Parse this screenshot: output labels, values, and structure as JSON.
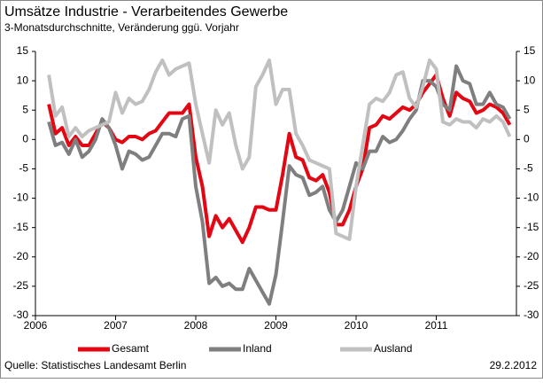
{
  "chart_data": {
    "type": "line",
    "title": "Umsätze Industrie - Verarbeitendes Gewerbe",
    "subtitle": "3-Monatsdurchschnitte, Veränderung ggü. Vorjahr",
    "source": "Quelle: Statistisches Landesamt Berlin",
    "date": "29.2.2012",
    "x": [
      2006.167,
      2006.25,
      2006.333,
      2006.417,
      2006.5,
      2006.583,
      2006.667,
      2006.75,
      2006.833,
      2006.917,
      2007.0,
      2007.083,
      2007.167,
      2007.25,
      2007.333,
      2007.417,
      2007.5,
      2007.583,
      2007.667,
      2007.75,
      2007.833,
      2007.917,
      2008.0,
      2008.083,
      2008.167,
      2008.25,
      2008.333,
      2008.417,
      2008.5,
      2008.583,
      2008.667,
      2008.75,
      2008.833,
      2008.917,
      2009.0,
      2009.083,
      2009.167,
      2009.25,
      2009.333,
      2009.417,
      2009.5,
      2009.583,
      2009.667,
      2009.75,
      2009.833,
      2009.917,
      2010.0,
      2010.083,
      2010.167,
      2010.25,
      2010.333,
      2010.417,
      2010.5,
      2010.583,
      2010.667,
      2010.75,
      2010.833,
      2010.917,
      2011.0,
      2011.083,
      2011.167,
      2011.25,
      2011.333,
      2011.417,
      2011.5,
      2011.583,
      2011.667,
      2011.75,
      2011.833,
      2011.917
    ],
    "series": [
      {
        "name": "Gesamt",
        "color": "#e30613",
        "width": 4,
        "values": [
          6,
          1,
          2,
          -1,
          0.5,
          -1,
          -1,
          1,
          3,
          2,
          0,
          -0.5,
          0.5,
          0.5,
          0,
          1,
          1.5,
          3,
          4.5,
          4.5,
          4.5,
          6,
          -3,
          -8,
          -16.5,
          -13,
          -15,
          -13.5,
          -15.5,
          -17.5,
          -15,
          -11.5,
          -11.5,
          -12,
          -12,
          -6,
          1,
          -3,
          -3.5,
          -6.5,
          -7,
          -6,
          -9,
          -14.5,
          -14.5,
          -12,
          -8,
          -5,
          2,
          2.5,
          4,
          3.5,
          4.5,
          5.5,
          5,
          6,
          8,
          9.5,
          11,
          7,
          4,
          8,
          7,
          6.5,
          4.5,
          5,
          6,
          5.5,
          4.5,
          2.5
        ]
      },
      {
        "name": "Inland",
        "color": "#7f7f7f",
        "width": 4,
        "values": [
          3,
          -1,
          -0.5,
          -2.5,
          0,
          -3,
          -2,
          0,
          3.5,
          2,
          -1,
          -5,
          -2,
          -2.5,
          -3.5,
          -3,
          -1,
          1,
          1,
          0.5,
          3.5,
          4,
          -8,
          -14,
          -24.5,
          -23.5,
          -25,
          -24.5,
          -25.5,
          -25.5,
          -22,
          -24,
          -26,
          -28,
          -23,
          -14,
          -4.5,
          -6,
          -6.5,
          -9.5,
          -9,
          -8,
          -12,
          -14,
          -12,
          -8,
          -4,
          -5,
          -2,
          -2,
          0.5,
          -0.5,
          0,
          1.5,
          3.5,
          5,
          10,
          10,
          9,
          6,
          5,
          12.5,
          10,
          9.5,
          6,
          6,
          8,
          6,
          5.5,
          3.5
        ]
      },
      {
        "name": "Ausland",
        "color": "#c0c0c0",
        "width": 4,
        "values": [
          11,
          4,
          5.5,
          0.5,
          2,
          0.5,
          1.5,
          2,
          2.5,
          3,
          8,
          4.5,
          7,
          6,
          6.5,
          8.5,
          11.5,
          13.5,
          11,
          12,
          12.5,
          13,
          6,
          1,
          -4,
          5,
          2.5,
          4.5,
          -1,
          -5,
          -3,
          9,
          11,
          13.5,
          6,
          8.5,
          8.5,
          1,
          -1,
          -3.5,
          -4,
          -4.5,
          -5,
          -16,
          -16.5,
          -17,
          -8,
          -1,
          6,
          7,
          6.5,
          8,
          11,
          11.5,
          7,
          5.5,
          9,
          13.5,
          12,
          3,
          2.5,
          3.5,
          3,
          3,
          2,
          3.5,
          3,
          4,
          3,
          0.5
        ]
      }
    ],
    "xlim": [
      2006,
      2012
    ],
    "xticks": [
      2006,
      2007,
      2008,
      2009,
      2010,
      2011
    ],
    "ylim": [
      -30,
      15
    ],
    "yticks": [
      -30,
      -25,
      -20,
      -15,
      -10,
      -5,
      0,
      5,
      10,
      15
    ],
    "grid": false
  }
}
